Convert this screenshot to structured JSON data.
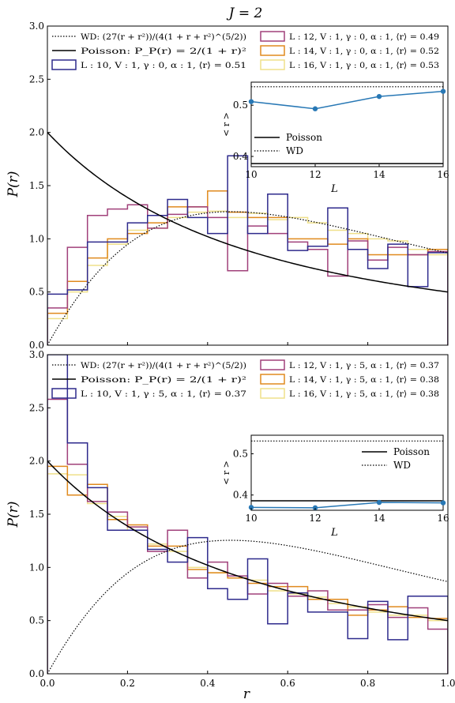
{
  "figure": {
    "title": "J = 2",
    "xlabel": "r",
    "ylabel": "P(r)"
  },
  "colors": {
    "L10": "#2e2a8c",
    "L12": "#a0407a",
    "L14": "#e08a1e",
    "L16": "#efe08a",
    "inset_line": "#2878b5",
    "axis": "#000000"
  },
  "chart_data": [
    {
      "type": "histogram",
      "panel": "top",
      "xlim": [
        0,
        1
      ],
      "ylim": [
        0,
        3.0
      ],
      "yticks": [
        "0.0",
        "0.5",
        "1.0",
        "1.5",
        "2.0",
        "2.5",
        "3.0"
      ],
      "xticks": [],
      "bin_edges": [
        0,
        0.05,
        0.1,
        0.15,
        0.2,
        0.25,
        0.3,
        0.35,
        0.4,
        0.45,
        0.5,
        0.55,
        0.6,
        0.65,
        0.7,
        0.75,
        0.8,
        0.85,
        0.9,
        0.95,
        1.0
      ],
      "legend_left": [
        {
          "label": "WD: (27(r + r²))/(4(1 + r + r²)^(5/2))",
          "style": "dotted"
        },
        {
          "label": "Poisson: P_P(r) = 2/(1 + r)²",
          "style": "solid"
        },
        {
          "label": "L : 10, V : 1, γ : 0, α : 1, ⟨r⟩ = 0.51",
          "series": "L10"
        }
      ],
      "legend_right": [
        {
          "label": "L : 12, V : 1, γ : 0, α : 1, ⟨r⟩ = 0.49",
          "series": "L12"
        },
        {
          "label": "L : 14, V : 1, γ : 0, α : 1, ⟨r⟩ = 0.52",
          "series": "L14"
        },
        {
          "label": "L : 16, V : 1, γ : 0, α : 1, ⟨r⟩ = 0.53",
          "series": "L16"
        }
      ],
      "series": [
        {
          "key": "L10",
          "values": [
            0.48,
            0.52,
            0.97,
            0.97,
            1.15,
            1.22,
            1.37,
            1.2,
            1.05,
            1.78,
            1.05,
            1.42,
            0.89,
            0.93,
            1.29,
            0.9,
            0.72,
            0.95,
            0.55,
            0.87
          ]
        },
        {
          "key": "L12",
          "values": [
            0.35,
            0.92,
            1.22,
            1.28,
            1.32,
            1.1,
            1.23,
            1.3,
            1.2,
            0.7,
            1.12,
            1.05,
            0.97,
            0.9,
            0.65,
            0.98,
            0.8,
            0.92,
            0.85,
            0.88
          ]
        },
        {
          "key": "L14",
          "values": [
            0.3,
            0.6,
            0.82,
            1.0,
            1.05,
            1.15,
            1.3,
            1.3,
            1.45,
            1.25,
            1.2,
            1.2,
            1.0,
            1.0,
            0.95,
            1.0,
            0.85,
            0.85,
            0.85,
            0.9
          ]
        },
        {
          "key": "L16",
          "values": [
            0.25,
            0.5,
            0.75,
            0.95,
            1.08,
            1.1,
            1.2,
            1.25,
            1.26,
            1.2,
            1.24,
            1.18,
            1.2,
            1.15,
            1.08,
            1.05,
            1.0,
            0.98,
            0.9,
            0.85
          ]
        }
      ],
      "inset": {
        "xlabel": "L",
        "ylabel": "< r >",
        "xlim": [
          10,
          16
        ],
        "ylim": [
          0.38,
          0.545
        ],
        "xticks": [
          "10",
          "12",
          "14",
          "16"
        ],
        "yticks": [
          "0.4",
          "0.5"
        ],
        "x": [
          10,
          12,
          14,
          16
        ],
        "y": [
          0.507,
          0.493,
          0.517,
          0.527
        ],
        "poisson_level": 0.386,
        "wd_level": 0.536,
        "legend": [
          {
            "label": "Poisson",
            "style": "solid"
          },
          {
            "label": "WD",
            "style": "dotted"
          }
        ]
      }
    },
    {
      "type": "histogram",
      "panel": "bottom",
      "xlim": [
        0,
        1
      ],
      "ylim": [
        0,
        3.0
      ],
      "yticks": [
        "0.0",
        "0.5",
        "1.0",
        "1.5",
        "2.0",
        "2.5",
        "3.0"
      ],
      "xticks": [
        "0.0",
        "0.2",
        "0.4",
        "0.6",
        "0.8",
        "1.0"
      ],
      "bin_edges": [
        0,
        0.05,
        0.1,
        0.15,
        0.2,
        0.25,
        0.3,
        0.35,
        0.4,
        0.45,
        0.5,
        0.55,
        0.6,
        0.65,
        0.7,
        0.75,
        0.8,
        0.85,
        0.9,
        0.95,
        1.0
      ],
      "legend_left": [
        {
          "label": "WD: (27(r + r²))/(4(1 + r + r²)^(5/2))",
          "style": "dotted"
        },
        {
          "label": "Poisson: P_P(r) = 2/(1 + r)²",
          "style": "solid"
        },
        {
          "label": "L : 10, V : 1, γ : 5, α : 1, ⟨r⟩ = 0.37",
          "series": "L10"
        }
      ],
      "legend_right": [
        {
          "label": "L : 12, V : 1, γ : 5, α : 1, ⟨r⟩ = 0.37",
          "series": "L12"
        },
        {
          "label": "L : 14, V : 1, γ : 5, α : 1, ⟨r⟩ = 0.38",
          "series": "L14"
        },
        {
          "label": "L : 16, V : 1, γ : 5, α : 1, ⟨r⟩ = 0.38",
          "series": "L16"
        }
      ],
      "series": [
        {
          "key": "L10",
          "values": [
            3.0,
            2.17,
            1.75,
            1.35,
            1.35,
            1.17,
            1.05,
            1.28,
            0.8,
            0.7,
            1.08,
            0.47,
            0.76,
            0.58,
            0.58,
            0.33,
            0.68,
            0.32,
            0.73,
            0.73
          ]
        },
        {
          "key": "L12",
          "values": [
            2.58,
            1.97,
            1.62,
            1.52,
            1.38,
            1.15,
            1.35,
            0.9,
            1.05,
            0.92,
            0.75,
            0.85,
            0.73,
            0.78,
            0.6,
            0.6,
            0.65,
            0.53,
            0.62,
            0.42
          ]
        },
        {
          "key": "L14",
          "values": [
            1.95,
            1.68,
            1.78,
            1.45,
            1.4,
            1.2,
            1.2,
            0.98,
            0.95,
            0.9,
            0.85,
            0.82,
            0.82,
            0.7,
            0.7,
            0.55,
            0.6,
            0.63,
            0.53,
            0.52
          ]
        },
        {
          "key": "L16",
          "values": [
            1.88,
            1.87,
            1.6,
            1.48,
            1.35,
            1.22,
            1.15,
            1.0,
            0.95,
            0.9,
            0.88,
            0.78,
            0.75,
            0.72,
            0.66,
            0.63,
            0.58,
            0.55,
            0.55,
            0.5
          ]
        }
      ],
      "inset": {
        "xlabel": "L",
        "ylabel": "< r >",
        "xlim": [
          10,
          16
        ],
        "ylim": [
          0.363,
          0.545
        ],
        "xticks": [
          "10",
          "12",
          "14",
          "16"
        ],
        "yticks": [
          "0.4",
          "0.5"
        ],
        "x": [
          10,
          12,
          14,
          16
        ],
        "y": [
          0.37,
          0.369,
          0.382,
          0.381
        ],
        "poisson_level": 0.386,
        "wd_level": 0.531,
        "legend": [
          {
            "label": "Poisson",
            "style": "solid"
          },
          {
            "label": "WD",
            "style": "dotted"
          }
        ]
      }
    }
  ]
}
